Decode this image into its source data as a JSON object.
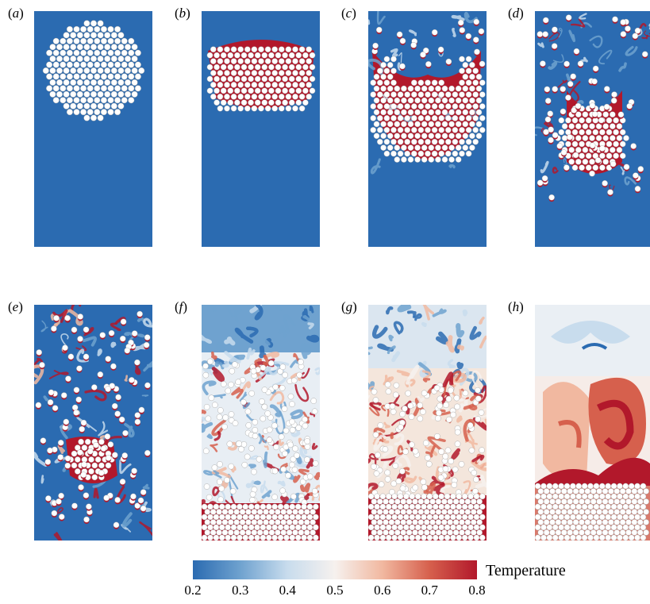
{
  "panels": [
    {
      "id": "a",
      "label": "a",
      "state": "circular-cluster",
      "particles": "white",
      "fluid": "cold"
    },
    {
      "id": "b",
      "label": "b",
      "state": "compressed-cluster",
      "particles": "white-with-red-fill",
      "fluid": "cold"
    },
    {
      "id": "c",
      "label": "c",
      "state": "cluster-breaking",
      "particles": "white-with-red-fill",
      "fluid": "cold"
    },
    {
      "id": "d",
      "label": "d",
      "state": "cluster-dispersing",
      "particles": "white-with-red-fill",
      "fluid": "cold"
    },
    {
      "id": "e",
      "label": "e",
      "state": "dispersed",
      "particles": "white-with-red-fill",
      "fluid": "cold-with-wisps"
    },
    {
      "id": "f",
      "label": "f",
      "state": "turbulent-mixing",
      "particles": "white",
      "fluid": "mixed"
    },
    {
      "id": "g",
      "label": "g",
      "state": "settling",
      "particles": "white",
      "fluid": "warm-mixed"
    },
    {
      "id": "h",
      "label": "h",
      "state": "settled-bed",
      "particles": "white",
      "fluid": "warm-plumes"
    }
  ],
  "colorbar": {
    "title": "Temperature",
    "ticks": [
      "0.2",
      "0.3",
      "0.4",
      "0.5",
      "0.6",
      "0.7",
      "0.8"
    ],
    "min": 0.2,
    "max": 0.8,
    "colors": [
      "#2b6bb1",
      "#6fa2cf",
      "#c8dced",
      "#f6f1ee",
      "#f1b8a0",
      "#d6604d",
      "#b2182b"
    ]
  }
}
